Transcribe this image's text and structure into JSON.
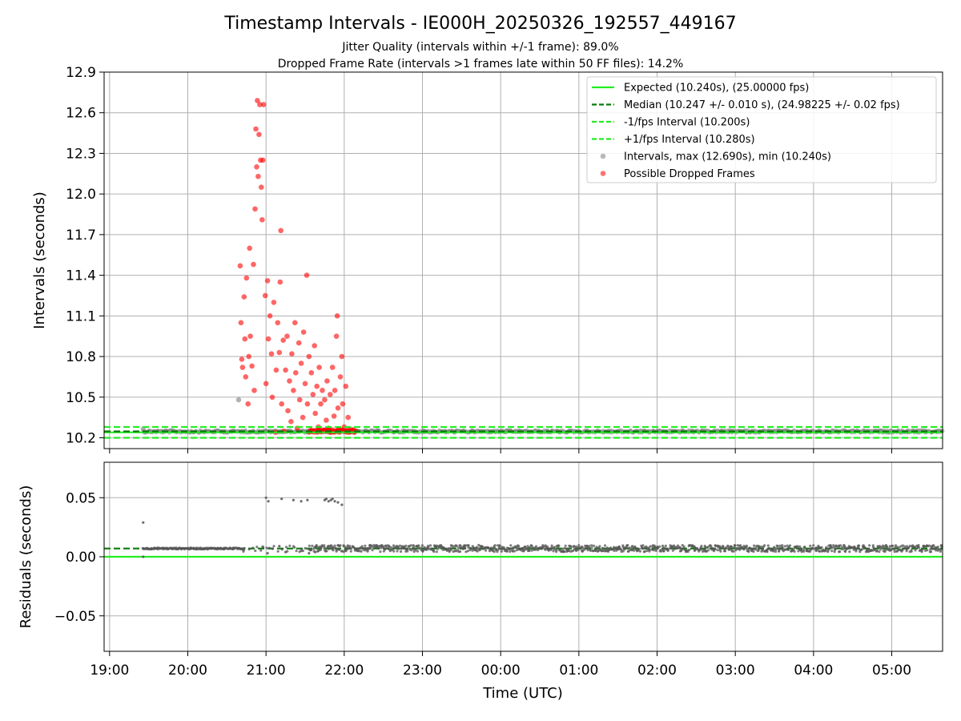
{
  "title": "Timestamp Intervals - IE000H_20250326_192557_449167",
  "subtitle_1": "Jitter Quality (intervals within +/-1 frame): 89.0%",
  "subtitle_2": "Dropped Frame Rate (intervals >1 frames late within 50 FF files): 14.2%",
  "colors": {
    "expected": "#22ee22",
    "median": "#0a7a0a",
    "interval_bounds": "#22ee22",
    "intervals": "#7f7f7f",
    "dropped": "#ff0000",
    "residual_points": "#555555",
    "grid": "#b0b0b0"
  },
  "chart_data": [
    {
      "type": "scatter",
      "ylabel": "Intervals (seconds)",
      "ylim": [
        10.12,
        12.9
      ],
      "yticks": [
        "10.2",
        "10.5",
        "10.8",
        "11.1",
        "11.4",
        "11.7",
        "12.0",
        "12.3",
        "12.6",
        "12.9"
      ],
      "grid": true,
      "legend_position": "top-right",
      "lines": [
        {
          "name": "Expected (10.240s), (25.00000 fps)",
          "y": 10.24,
          "style": "solid",
          "color": "#22ee22"
        },
        {
          "name": "Median (10.247 +/- 0.010 s), (24.98225 +/- 0.02 fps)",
          "y": 10.247,
          "style": "dashed",
          "color": "#0a7a0a"
        },
        {
          "name": "-1/fps Interval (10.200s)",
          "y": 10.2,
          "style": "dashed",
          "color": "#22ee22"
        },
        {
          "name": "+1/fps Interval (10.280s)",
          "y": 10.28,
          "style": "dashed",
          "color": "#22ee22"
        }
      ],
      "scatter_series": [
        {
          "name": "Intervals, max (12.690s), min (10.240s)",
          "max": 12.69,
          "min": 10.24,
          "typical": 10.247,
          "x_range_hours": [
            19.43,
            29.65
          ],
          "color": "#7f7f7f"
        },
        {
          "name": "Possible Dropped Frames",
          "color": "#ff0000",
          "points": [
            [
              20.67,
              11.47
            ],
            [
              20.68,
              11.05
            ],
            [
              20.69,
              10.78
            ],
            [
              20.7,
              10.72
            ],
            [
              20.72,
              11.24
            ],
            [
              20.73,
              10.93
            ],
            [
              20.74,
              10.65
            ],
            [
              20.75,
              11.38
            ],
            [
              20.77,
              10.45
            ],
            [
              20.78,
              10.8
            ],
            [
              20.79,
              11.6
            ],
            [
              20.8,
              10.95
            ],
            [
              20.82,
              10.73
            ],
            [
              20.84,
              11.48
            ],
            [
              20.85,
              10.55
            ],
            [
              20.86,
              11.89
            ],
            [
              20.87,
              12.48
            ],
            [
              20.88,
              12.2
            ],
            [
              20.89,
              12.69
            ],
            [
              20.9,
              12.13
            ],
            [
              20.91,
              12.44
            ],
            [
              20.92,
              12.66
            ],
            [
              20.93,
              12.25
            ],
            [
              20.94,
              12.05
            ],
            [
              20.95,
              11.81
            ],
            [
              20.96,
              12.25
            ],
            [
              20.97,
              12.66
            ],
            [
              20.99,
              11.25
            ],
            [
              21.0,
              10.6
            ],
            [
              21.02,
              11.36
            ],
            [
              21.03,
              10.93
            ],
            [
              21.05,
              11.1
            ],
            [
              21.07,
              10.82
            ],
            [
              21.08,
              10.5
            ],
            [
              21.1,
              11.2
            ],
            [
              21.12,
              10.24
            ],
            [
              21.13,
              10.7
            ],
            [
              21.15,
              11.05
            ],
            [
              21.17,
              10.83
            ],
            [
              21.18,
              11.35
            ],
            [
              21.19,
              11.73
            ],
            [
              21.2,
              10.45
            ],
            [
              21.22,
              10.92
            ],
            [
              21.23,
              10.25
            ],
            [
              21.25,
              10.7
            ],
            [
              21.27,
              10.95
            ],
            [
              21.28,
              10.4
            ],
            [
              21.3,
              10.62
            ],
            [
              21.32,
              10.32
            ],
            [
              21.33,
              10.82
            ],
            [
              21.35,
              10.55
            ],
            [
              21.37,
              11.05
            ],
            [
              21.38,
              10.68
            ],
            [
              21.4,
              10.27
            ],
            [
              21.42,
              10.9
            ],
            [
              21.43,
              10.48
            ],
            [
              21.45,
              10.75
            ],
            [
              21.47,
              10.35
            ],
            [
              21.48,
              10.98
            ],
            [
              21.5,
              10.6
            ],
            [
              21.52,
              11.4
            ],
            [
              21.53,
              10.45
            ],
            [
              21.55,
              10.8
            ],
            [
              21.57,
              10.25
            ],
            [
              21.58,
              10.68
            ],
            [
              21.6,
              10.52
            ],
            [
              21.62,
              10.88
            ],
            [
              21.63,
              10.38
            ],
            [
              21.65,
              10.58
            ],
            [
              21.67,
              10.28
            ],
            [
              21.68,
              10.72
            ],
            [
              21.7,
              10.45
            ],
            [
              21.72,
              10.55
            ],
            [
              21.73,
              10.25
            ],
            [
              21.75,
              10.48
            ],
            [
              21.77,
              10.33
            ],
            [
              21.78,
              10.62
            ],
            [
              21.8,
              10.27
            ],
            [
              21.82,
              10.52
            ],
            [
              21.83,
              10.24
            ],
            [
              21.85,
              10.72
            ],
            [
              21.87,
              10.36
            ],
            [
              21.88,
              10.55
            ],
            [
              21.9,
              10.95
            ],
            [
              21.91,
              11.1
            ],
            [
              21.92,
              10.42
            ],
            [
              21.93,
              10.26
            ],
            [
              21.95,
              10.65
            ],
            [
              21.97,
              10.8
            ],
            [
              21.98,
              10.45
            ],
            [
              22.0,
              10.28
            ],
            [
              22.02,
              10.58
            ],
            [
              22.03,
              10.25
            ],
            [
              22.05,
              10.35
            ],
            [
              22.07,
              10.25
            ],
            [
              22.1,
              10.25
            ],
            [
              22.13,
              10.24
            ],
            [
              22.15,
              10.25
            ]
          ]
        }
      ]
    },
    {
      "type": "scatter",
      "xlabel": "Time (UTC)",
      "ylabel": "Residuals (seconds)",
      "ylim": [
        -0.08,
        0.08
      ],
      "yticks": [
        "−0.05",
        "0.00",
        "0.05"
      ],
      "xticks": [
        "19:00",
        "20:00",
        "21:00",
        "22:00",
        "23:00",
        "00:00",
        "01:00",
        "02:00",
        "03:00",
        "04:00",
        "05:00"
      ],
      "grid": true,
      "lines": [
        {
          "y": 0.0,
          "style": "solid",
          "color": "#22ee22"
        },
        {
          "y": 0.007,
          "style": "dashed",
          "color": "#0a7a0a"
        }
      ],
      "scatter_series": [
        {
          "color": "#555555",
          "typical": 0.007,
          "x_range_hours": [
            19.43,
            29.65
          ],
          "outliers": [
            [
              19.43,
              0.029
            ],
            [
              19.43,
              0.0
            ],
            [
              21.0,
              0.05
            ],
            [
              21.03,
              0.047
            ],
            [
              21.2,
              0.049
            ],
            [
              21.35,
              0.048
            ],
            [
              21.45,
              0.047
            ],
            [
              21.53,
              0.048
            ],
            [
              21.75,
              0.048
            ],
            [
              21.77,
              0.049
            ],
            [
              21.8,
              0.047
            ],
            [
              21.83,
              0.048
            ],
            [
              21.85,
              0.049
            ],
            [
              21.88,
              0.047
            ],
            [
              21.92,
              0.046
            ],
            [
              21.97,
              0.044
            ],
            [
              21.02,
              0.003
            ],
            [
              21.17,
              0.009
            ],
            [
              21.25,
              0.004
            ],
            [
              21.45,
              0.005
            ],
            [
              21.55,
              0.003
            ],
            [
              21.63,
              0.004
            ]
          ]
        }
      ]
    }
  ],
  "x_axis": {
    "range_hours": [
      18.93,
      29.65
    ],
    "tick_hours": [
      19,
      20,
      21,
      22,
      23,
      24,
      25,
      26,
      27,
      28,
      29
    ]
  }
}
